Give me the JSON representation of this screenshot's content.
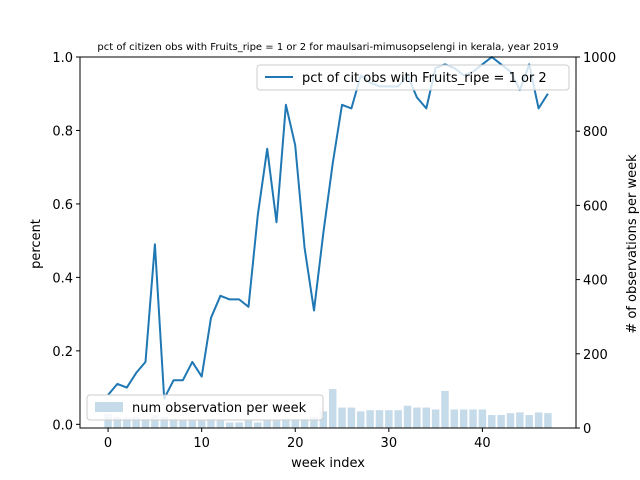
{
  "chart_data": {
    "type": "bar+line",
    "title": "pct of citizen obs with Fruits_ripe = 1 or 2 for maulsari-mimusopselengi in kerala, year 2019",
    "xlabel": "week index",
    "ylabel_left": "percent",
    "ylabel_right": "# of observations per week",
    "xlim": [
      -3,
      50
    ],
    "ylim_left": [
      -0.01,
      1.0
    ],
    "ylim_right": [
      0,
      1000
    ],
    "x_ticks": [
      0,
      10,
      20,
      30,
      40
    ],
    "y_ticks_left": [
      0.0,
      0.2,
      0.4,
      0.6,
      0.8,
      1.0
    ],
    "y_ticks_right": [
      0,
      200,
      400,
      600,
      800,
      1000
    ],
    "grid": false,
    "line_color": "#1f77b4",
    "bar_color": "#c6dbea",
    "weeks": [
      0,
      1,
      2,
      3,
      4,
      5,
      6,
      7,
      8,
      9,
      10,
      11,
      12,
      13,
      14,
      15,
      16,
      17,
      18,
      19,
      20,
      21,
      22,
      23,
      24,
      25,
      26,
      27,
      28,
      29,
      30,
      31,
      32,
      33,
      34,
      35,
      36,
      37,
      38,
      39,
      40,
      41,
      42,
      43,
      44,
      45,
      46,
      47
    ],
    "series": [
      {
        "name": "pct of cit obs with Fruits_ripe = 1 or 2",
        "axis": "left",
        "kind": "line",
        "values": [
          0.08,
          0.11,
          0.1,
          0.14,
          0.17,
          0.49,
          0.07,
          0.12,
          0.12,
          0.17,
          0.13,
          0.29,
          0.35,
          0.34,
          0.34,
          0.32,
          0.57,
          0.75,
          0.55,
          0.87,
          0.76,
          0.48,
          0.31,
          0.52,
          0.71,
          0.87,
          0.86,
          0.95,
          0.93,
          0.92,
          0.92,
          0.92,
          0.95,
          0.89,
          0.86,
          0.97,
          0.98,
          0.97,
          0.95,
          0.96,
          0.98,
          1.0,
          0.98,
          0.96,
          0.91,
          0.98,
          0.86,
          0.9
        ]
      },
      {
        "name": "num observation per week",
        "axis": "right",
        "kind": "bar",
        "values": [
          38,
          30,
          28,
          30,
          25,
          35,
          30,
          25,
          20,
          20,
          20,
          25,
          20,
          15,
          15,
          20,
          15,
          20,
          20,
          25,
          25,
          25,
          30,
          45,
          105,
          55,
          55,
          45,
          48,
          48,
          48,
          48,
          60,
          55,
          55,
          50,
          100,
          50,
          50,
          50,
          50,
          35,
          35,
          40,
          42,
          35,
          42,
          40
        ]
      }
    ],
    "legend": {
      "line_entry": "pct of cit obs with Fruits_ripe = 1 or 2",
      "line_placement": "upper-right",
      "bar_entry": "num observation per week",
      "bar_placement": "lower-left"
    }
  }
}
